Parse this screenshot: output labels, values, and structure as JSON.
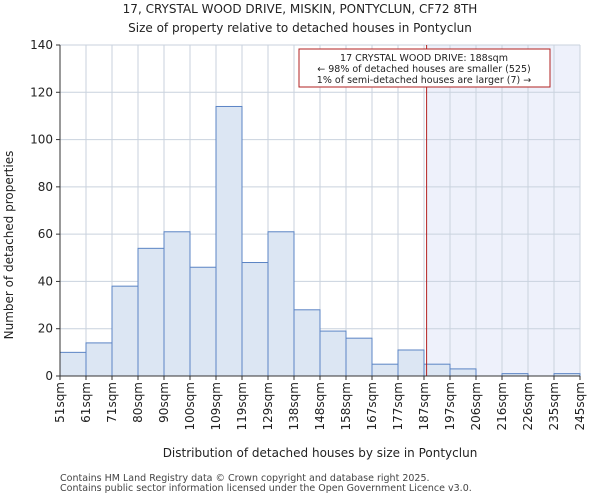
{
  "colors": {
    "bar_fill": "#dce6f3",
    "bar_stroke": "#5b84c4",
    "grid": "#c9d2de",
    "marker": "#b22222",
    "highlight": "#eef1fb"
  },
  "chart_data": {
    "type": "bar",
    "title": [
      "17, CRYSTAL WOOD DRIVE, MISKIN, PONTYCLUN, CF72 8TH",
      "Size of property relative to detached houses in Pontyclun"
    ],
    "xlabel": "Distribution of detached houses by size in Pontyclun",
    "ylabel": "Number of detached properties",
    "ylim": [
      0,
      140
    ],
    "yticks": [
      0,
      20,
      40,
      60,
      80,
      100,
      120,
      140
    ],
    "grid": true,
    "edge_labels": [
      "51sqm",
      "61sqm",
      "71sqm",
      "80sqm",
      "90sqm",
      "100sqm",
      "109sqm",
      "119sqm",
      "129sqm",
      "138sqm",
      "148sqm",
      "158sqm",
      "167sqm",
      "177sqm",
      "187sqm",
      "197sqm",
      "206sqm",
      "216sqm",
      "226sqm",
      "235sqm",
      "245sqm"
    ],
    "values": [
      10,
      14,
      38,
      54,
      61,
      46,
      114,
      48,
      61,
      28,
      19,
      16,
      5,
      11,
      5,
      3,
      0,
      1,
      0,
      1
    ],
    "subject_position": 14.1,
    "annotation": {
      "line1": "17 CRYSTAL WOOD DRIVE: 188sqm",
      "line2": "← 98% of detached houses are smaller (525)",
      "line3": "1% of semi-detached houses are larger (7) →"
    }
  },
  "footer": {
    "line1": "Contains HM Land Registry data © Crown copyright and database right 2025.",
    "line2": "Contains public sector information licensed under the Open Government Licence v3.0."
  }
}
